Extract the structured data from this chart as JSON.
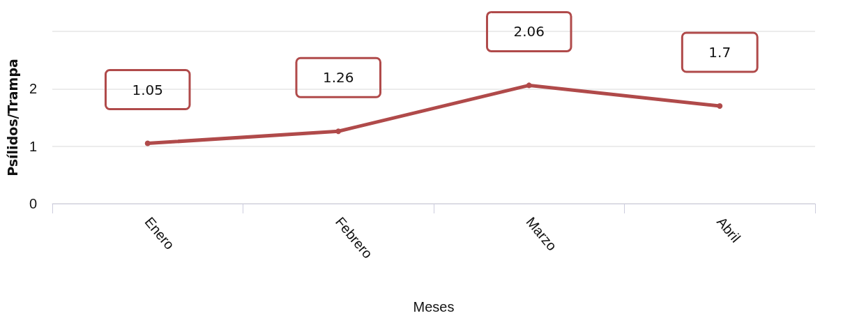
{
  "chart_data": {
    "type": "line",
    "xlabel": "Meses",
    "ylabel": "Psílidos/Trampa",
    "categories": [
      "Enero",
      "Febrero",
      "Marzo",
      "Abril"
    ],
    "values": [
      1.05,
      1.26,
      2.06,
      1.7
    ],
    "color": "#b04a4a",
    "ylim": [
      0,
      3
    ],
    "yticks": [
      0,
      1,
      2,
      {
        "value": 3,
        "label": null
      }
    ],
    "grid": "y",
    "marker": "circle",
    "line_style": "solid",
    "data_labels": true
  }
}
